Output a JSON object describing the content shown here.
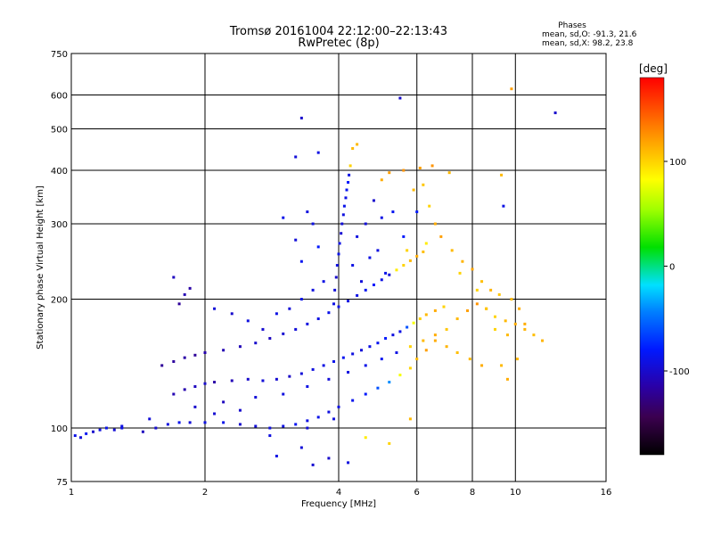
{
  "chart_data": {
    "type": "scatter",
    "title": "Tromsø 20161004 22:12:00–22:13:43",
    "subtitle": "RwPretec (8p)",
    "xlabel": "Frequency [MHz]",
    "ylabel": "Stationary phase Virtual Height [km]",
    "x_scale": "log",
    "y_scale": "log",
    "xlim": [
      1,
      16
    ],
    "ylim": [
      75,
      750
    ],
    "x_ticks": [
      1,
      2,
      4,
      6,
      8,
      10,
      16
    ],
    "x_tick_labels": [
      "1",
      "2",
      "4",
      "6",
      "8",
      "10",
      "16"
    ],
    "y_ticks": [
      75,
      100,
      200,
      300,
      400,
      500,
      600,
      750
    ],
    "y_tick_labels": [
      "75",
      "100",
      "200",
      "300",
      "400",
      "500",
      "600",
      "750"
    ],
    "grid": true,
    "phases": {
      "title": "Phases",
      "line_o": "mean, sd,O: -91.3, 21.6",
      "line_x": "mean, sd,X:  98.2, 23.8"
    },
    "colorbar": {
      "label": "[deg]",
      "tick_values": [
        100,
        0,
        -100
      ],
      "tick_labels": [
        "100",
        "0",
        "-100"
      ],
      "range": [
        -180,
        180
      ]
    },
    "series": [
      {
        "points": [
          [
            1.02,
            96,
            -90
          ],
          [
            1.05,
            95,
            -95
          ],
          [
            1.08,
            97,
            -85
          ],
          [
            1.12,
            98,
            -100
          ],
          [
            1.16,
            99,
            -92
          ],
          [
            1.2,
            100,
            -88
          ],
          [
            1.25,
            99,
            -96
          ],
          [
            1.3,
            101,
            -90
          ],
          [
            1.45,
            98,
            -105
          ],
          [
            1.55,
            100,
            -98
          ],
          [
            1.65,
            102,
            -92
          ],
          [
            1.75,
            103,
            -86
          ],
          [
            1.85,
            103,
            -95
          ],
          [
            2.0,
            103,
            -90
          ],
          [
            2.2,
            103,
            -88
          ],
          [
            2.4,
            102,
            -100
          ],
          [
            2.6,
            101,
            -95
          ],
          [
            2.8,
            100,
            -92
          ],
          [
            3.0,
            101,
            -90
          ],
          [
            3.2,
            102,
            -85
          ],
          [
            3.4,
            104,
            -90
          ],
          [
            3.6,
            106,
            -88
          ],
          [
            3.8,
            109,
            -92
          ],
          [
            4.0,
            112,
            -90
          ],
          [
            4.3,
            116,
            -86
          ],
          [
            4.6,
            120,
            -80
          ],
          [
            4.9,
            124,
            -60
          ],
          [
            5.2,
            128,
            -40
          ],
          [
            5.5,
            133,
            80
          ],
          [
            5.8,
            138,
            100
          ],
          [
            6.0,
            145,
            110
          ],
          [
            6.3,
            152,
            120
          ],
          [
            6.6,
            160,
            115
          ],
          [
            7.0,
            170,
            105
          ],
          [
            7.4,
            180,
            110
          ],
          [
            7.8,
            188,
            120
          ],
          [
            8.2,
            195,
            125
          ],
          [
            8.6,
            190,
            118
          ],
          [
            9.0,
            182,
            100
          ],
          [
            9.5,
            178,
            110
          ],
          [
            10.0,
            175,
            115
          ],
          [
            10.5,
            170,
            112
          ],
          [
            11.0,
            165,
            108
          ]
        ]
      },
      {
        "points": [
          [
            1.7,
            120,
            -110
          ],
          [
            1.8,
            123,
            -112
          ],
          [
            1.9,
            125,
            -105
          ],
          [
            2.0,
            127,
            -100
          ],
          [
            2.1,
            128,
            -115
          ],
          [
            2.3,
            129,
            -108
          ],
          [
            2.5,
            130,
            -100
          ],
          [
            2.7,
            129,
            -95
          ],
          [
            2.9,
            130,
            -98
          ],
          [
            3.1,
            132,
            -102
          ],
          [
            3.3,
            134,
            -95
          ],
          [
            3.5,
            137,
            -92
          ],
          [
            3.7,
            140,
            -90
          ],
          [
            3.9,
            143,
            -88
          ],
          [
            4.1,
            146,
            -85
          ],
          [
            4.3,
            149,
            -92
          ],
          [
            4.5,
            152,
            -95
          ],
          [
            4.7,
            155,
            -90
          ],
          [
            4.9,
            158,
            -85
          ],
          [
            5.1,
            162,
            -80
          ],
          [
            5.3,
            165,
            -92
          ],
          [
            5.5,
            168,
            -90
          ],
          [
            5.7,
            172,
            -60
          ],
          [
            5.9,
            176,
            80
          ],
          [
            6.1,
            180,
            100
          ],
          [
            6.3,
            184,
            110
          ],
          [
            6.6,
            188,
            115
          ],
          [
            6.9,
            192,
            100
          ]
        ]
      },
      {
        "points": [
          [
            1.6,
            140,
            -120
          ],
          [
            1.7,
            143,
            -118
          ],
          [
            1.8,
            146,
            -115
          ],
          [
            1.9,
            148,
            -120
          ],
          [
            2.0,
            150,
            -112
          ],
          [
            2.2,
            152,
            -110
          ],
          [
            2.4,
            155,
            -108
          ],
          [
            2.6,
            158,
            -100
          ],
          [
            2.8,
            162,
            -105
          ],
          [
            3.0,
            166,
            -98
          ],
          [
            3.2,
            170,
            -95
          ],
          [
            3.4,
            175,
            -92
          ],
          [
            3.6,
            180,
            -90
          ],
          [
            3.8,
            186,
            -88
          ],
          [
            4.0,
            192,
            -90
          ],
          [
            4.2,
            198,
            -92
          ],
          [
            4.4,
            204,
            -90
          ],
          [
            4.6,
            210,
            -85
          ],
          [
            4.8,
            216,
            -80
          ],
          [
            5.0,
            222,
            -90
          ],
          [
            5.2,
            228,
            -95
          ],
          [
            5.4,
            234,
            90
          ],
          [
            5.6,
            240,
            100
          ],
          [
            5.8,
            246,
            110
          ],
          [
            6.0,
            252,
            115
          ],
          [
            6.2,
            258,
            108
          ]
        ]
      },
      {
        "points": [
          [
            3.9,
            195,
            -90
          ],
          [
            3.92,
            210,
            -95
          ],
          [
            3.95,
            225,
            -100
          ],
          [
            3.97,
            240,
            -92
          ],
          [
            4.0,
            255,
            -88
          ],
          [
            4.02,
            270,
            -90
          ],
          [
            4.05,
            285,
            -98
          ],
          [
            4.07,
            300,
            -95
          ],
          [
            4.1,
            315,
            -92
          ],
          [
            4.12,
            330,
            -88
          ],
          [
            4.15,
            345,
            -90
          ],
          [
            4.17,
            360,
            -85
          ],
          [
            4.2,
            375,
            -80
          ],
          [
            4.22,
            390,
            -90
          ],
          [
            4.25,
            410,
            100
          ],
          [
            4.3,
            450,
            110
          ]
        ]
      },
      {
        "points": [
          [
            1.8,
            205,
            -110
          ],
          [
            1.85,
            212,
            -115
          ],
          [
            1.7,
            225,
            -105
          ],
          [
            1.75,
            195,
            -120
          ],
          [
            2.1,
            190,
            -95
          ],
          [
            2.3,
            185,
            -100
          ],
          [
            2.5,
            178,
            -92
          ],
          [
            2.7,
            170,
            -98
          ],
          [
            2.9,
            185,
            -90
          ],
          [
            3.1,
            190,
            -95
          ],
          [
            3.3,
            200,
            -88
          ],
          [
            3.5,
            210,
            -92
          ],
          [
            3.7,
            220,
            -90
          ],
          [
            3.3,
            245,
            -85
          ],
          [
            3.6,
            265,
            -80
          ],
          [
            3.2,
            275,
            -95
          ],
          [
            3.5,
            300,
            -90
          ],
          [
            3.0,
            310,
            -88
          ],
          [
            3.4,
            320,
            -92
          ],
          [
            3.3,
            530,
            -100
          ],
          [
            3.2,
            430,
            -95
          ],
          [
            3.6,
            440,
            -90
          ],
          [
            4.4,
            460,
            110
          ],
          [
            5.0,
            380,
            115
          ],
          [
            5.2,
            395,
            120
          ],
          [
            5.6,
            400,
            125
          ],
          [
            5.9,
            360,
            110
          ],
          [
            6.2,
            370,
            105
          ],
          [
            6.4,
            330,
            100
          ],
          [
            6.6,
            300,
            115
          ],
          [
            6.8,
            280,
            120
          ],
          [
            7.2,
            260,
            110
          ],
          [
            7.6,
            245,
            112
          ],
          [
            8.0,
            235,
            118
          ],
          [
            8.4,
            220,
            108
          ],
          [
            8.8,
            210,
            112
          ],
          [
            9.2,
            205,
            105
          ],
          [
            9.8,
            200,
            110
          ],
          [
            10.2,
            190,
            115
          ],
          [
            6.1,
            405,
            120
          ],
          [
            6.5,
            410,
            125
          ],
          [
            7.1,
            395,
            110
          ],
          [
            5.5,
            590,
            -100
          ],
          [
            9.8,
            620,
            120
          ],
          [
            12.3,
            545,
            -100
          ],
          [
            9.3,
            390,
            110
          ],
          [
            9.4,
            330,
            -90
          ],
          [
            7.5,
            230,
            100
          ],
          [
            5.0,
            310,
            -90
          ],
          [
            5.3,
            320,
            -85
          ],
          [
            5.6,
            280,
            -80
          ],
          [
            4.7,
            250,
            -90
          ],
          [
            4.9,
            260,
            -92
          ],
          [
            5.1,
            230,
            -88
          ],
          [
            4.5,
            220,
            -95
          ],
          [
            4.3,
            240,
            -90
          ],
          [
            4.6,
            300,
            -95
          ],
          [
            4.8,
            340,
            -100
          ],
          [
            4.4,
            280,
            -92
          ],
          [
            6.0,
            320,
            -80
          ],
          [
            6.3,
            270,
            90
          ],
          [
            5.7,
            260,
            100
          ],
          [
            8.2,
            210,
            100
          ],
          [
            8.6,
            190,
            105
          ],
          [
            9.0,
            170,
            100
          ],
          [
            9.6,
            165,
            110
          ],
          [
            10.5,
            175,
            115
          ],
          [
            11.5,
            160,
            112
          ],
          [
            9.3,
            140,
            110
          ],
          [
            9.6,
            130,
            115
          ],
          [
            10.1,
            145,
            110
          ]
        ]
      },
      {
        "points": [
          [
            1.3,
            100,
            -90
          ],
          [
            1.5,
            105,
            -95
          ],
          [
            1.9,
            112,
            -100
          ],
          [
            2.2,
            115,
            -105
          ],
          [
            2.6,
            118,
            -95
          ],
          [
            3.0,
            120,
            -92
          ],
          [
            3.4,
            125,
            -90
          ],
          [
            3.8,
            130,
            -95
          ],
          [
            4.2,
            135,
            -92
          ],
          [
            4.6,
            140,
            -88
          ],
          [
            5.0,
            145,
            -85
          ],
          [
            5.4,
            150,
            -90
          ],
          [
            5.8,
            155,
            100
          ],
          [
            6.2,
            160,
            110
          ],
          [
            6.6,
            165,
            115
          ],
          [
            7.0,
            155,
            112
          ],
          [
            7.4,
            150,
            108
          ],
          [
            7.9,
            145,
            110
          ],
          [
            8.4,
            140,
            115
          ],
          [
            2.8,
            96,
            -92
          ],
          [
            3.3,
            90,
            -95
          ],
          [
            3.8,
            85,
            -100
          ],
          [
            4.2,
            83,
            -92
          ],
          [
            3.5,
            82,
            -98
          ],
          [
            2.9,
            86,
            -90
          ],
          [
            4.6,
            95,
            90
          ],
          [
            5.2,
            92,
            100
          ],
          [
            5.8,
            105,
            110
          ],
          [
            3.4,
            100,
            -95
          ],
          [
            3.9,
            105,
            -92
          ],
          [
            2.1,
            108,
            -98
          ],
          [
            2.4,
            110,
            -100
          ]
        ]
      }
    ]
  }
}
